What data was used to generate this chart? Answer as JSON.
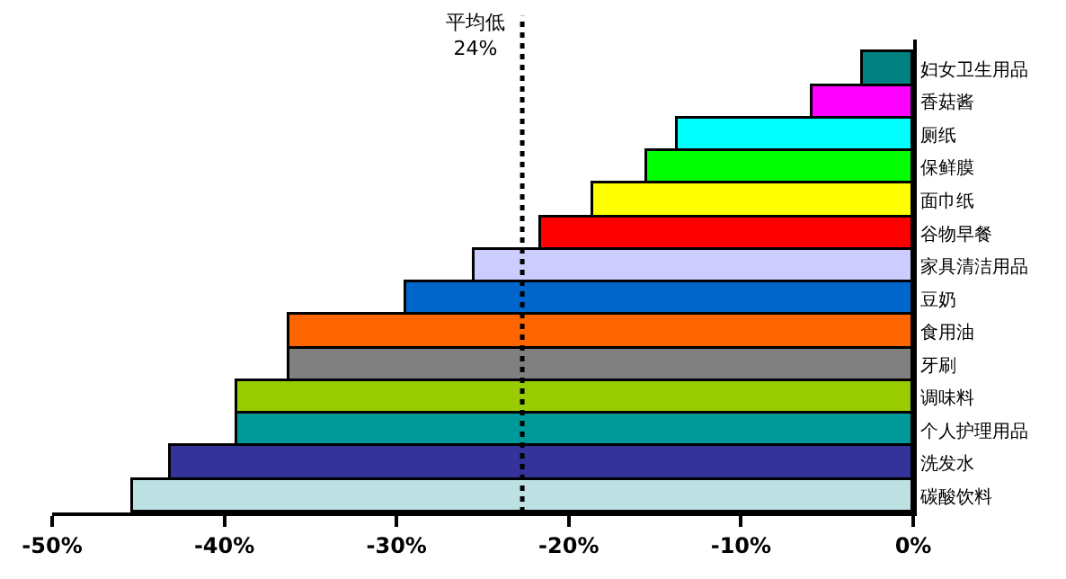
{
  "chart_data": {
    "type": "bar",
    "orientation": "horizontal",
    "categories": [
      "妇女卫生用品",
      "香菇酱",
      "厕纸",
      "保鲜膜",
      "面巾纸",
      "谷物早餐",
      "家具清洁用品",
      "豆奶",
      "食用油",
      "牙刷",
      "调味料",
      "个人护理用品",
      "洗发水",
      "碳酸饮料"
    ],
    "values": [
      -2.9,
      -5.8,
      -13.7,
      -15.5,
      -18.6,
      -21.6,
      -25.5,
      -29.4,
      -36.2,
      -36.2,
      -39.2,
      -39.2,
      -43.1,
      -45.3
    ],
    "colors": [
      "#008080",
      "#ff00ff",
      "#00ffff",
      "#00ff00",
      "#ffff00",
      "#ff0000",
      "#ccccff",
      "#0066cc",
      "#ff6600",
      "#808080",
      "#99cc00",
      "#009999",
      "#333399",
      "#bde0e3"
    ],
    "xlim": [
      -50,
      0
    ],
    "xticks": [
      {
        "value": -50,
        "label": "-50%"
      },
      {
        "value": -40,
        "label": "-40%"
      },
      {
        "value": -30,
        "label": "-30%"
      },
      {
        "value": -20,
        "label": "-20%"
      },
      {
        "value": -10,
        "label": "-10%"
      },
      {
        "value": 0,
        "label": "0%"
      }
    ],
    "ref_lines": [
      {
        "axis": "x",
        "value": -22.7,
        "label": "平均低\n24%",
        "color": "#000000",
        "line_style": "dotted"
      }
    ],
    "legend": false
  }
}
